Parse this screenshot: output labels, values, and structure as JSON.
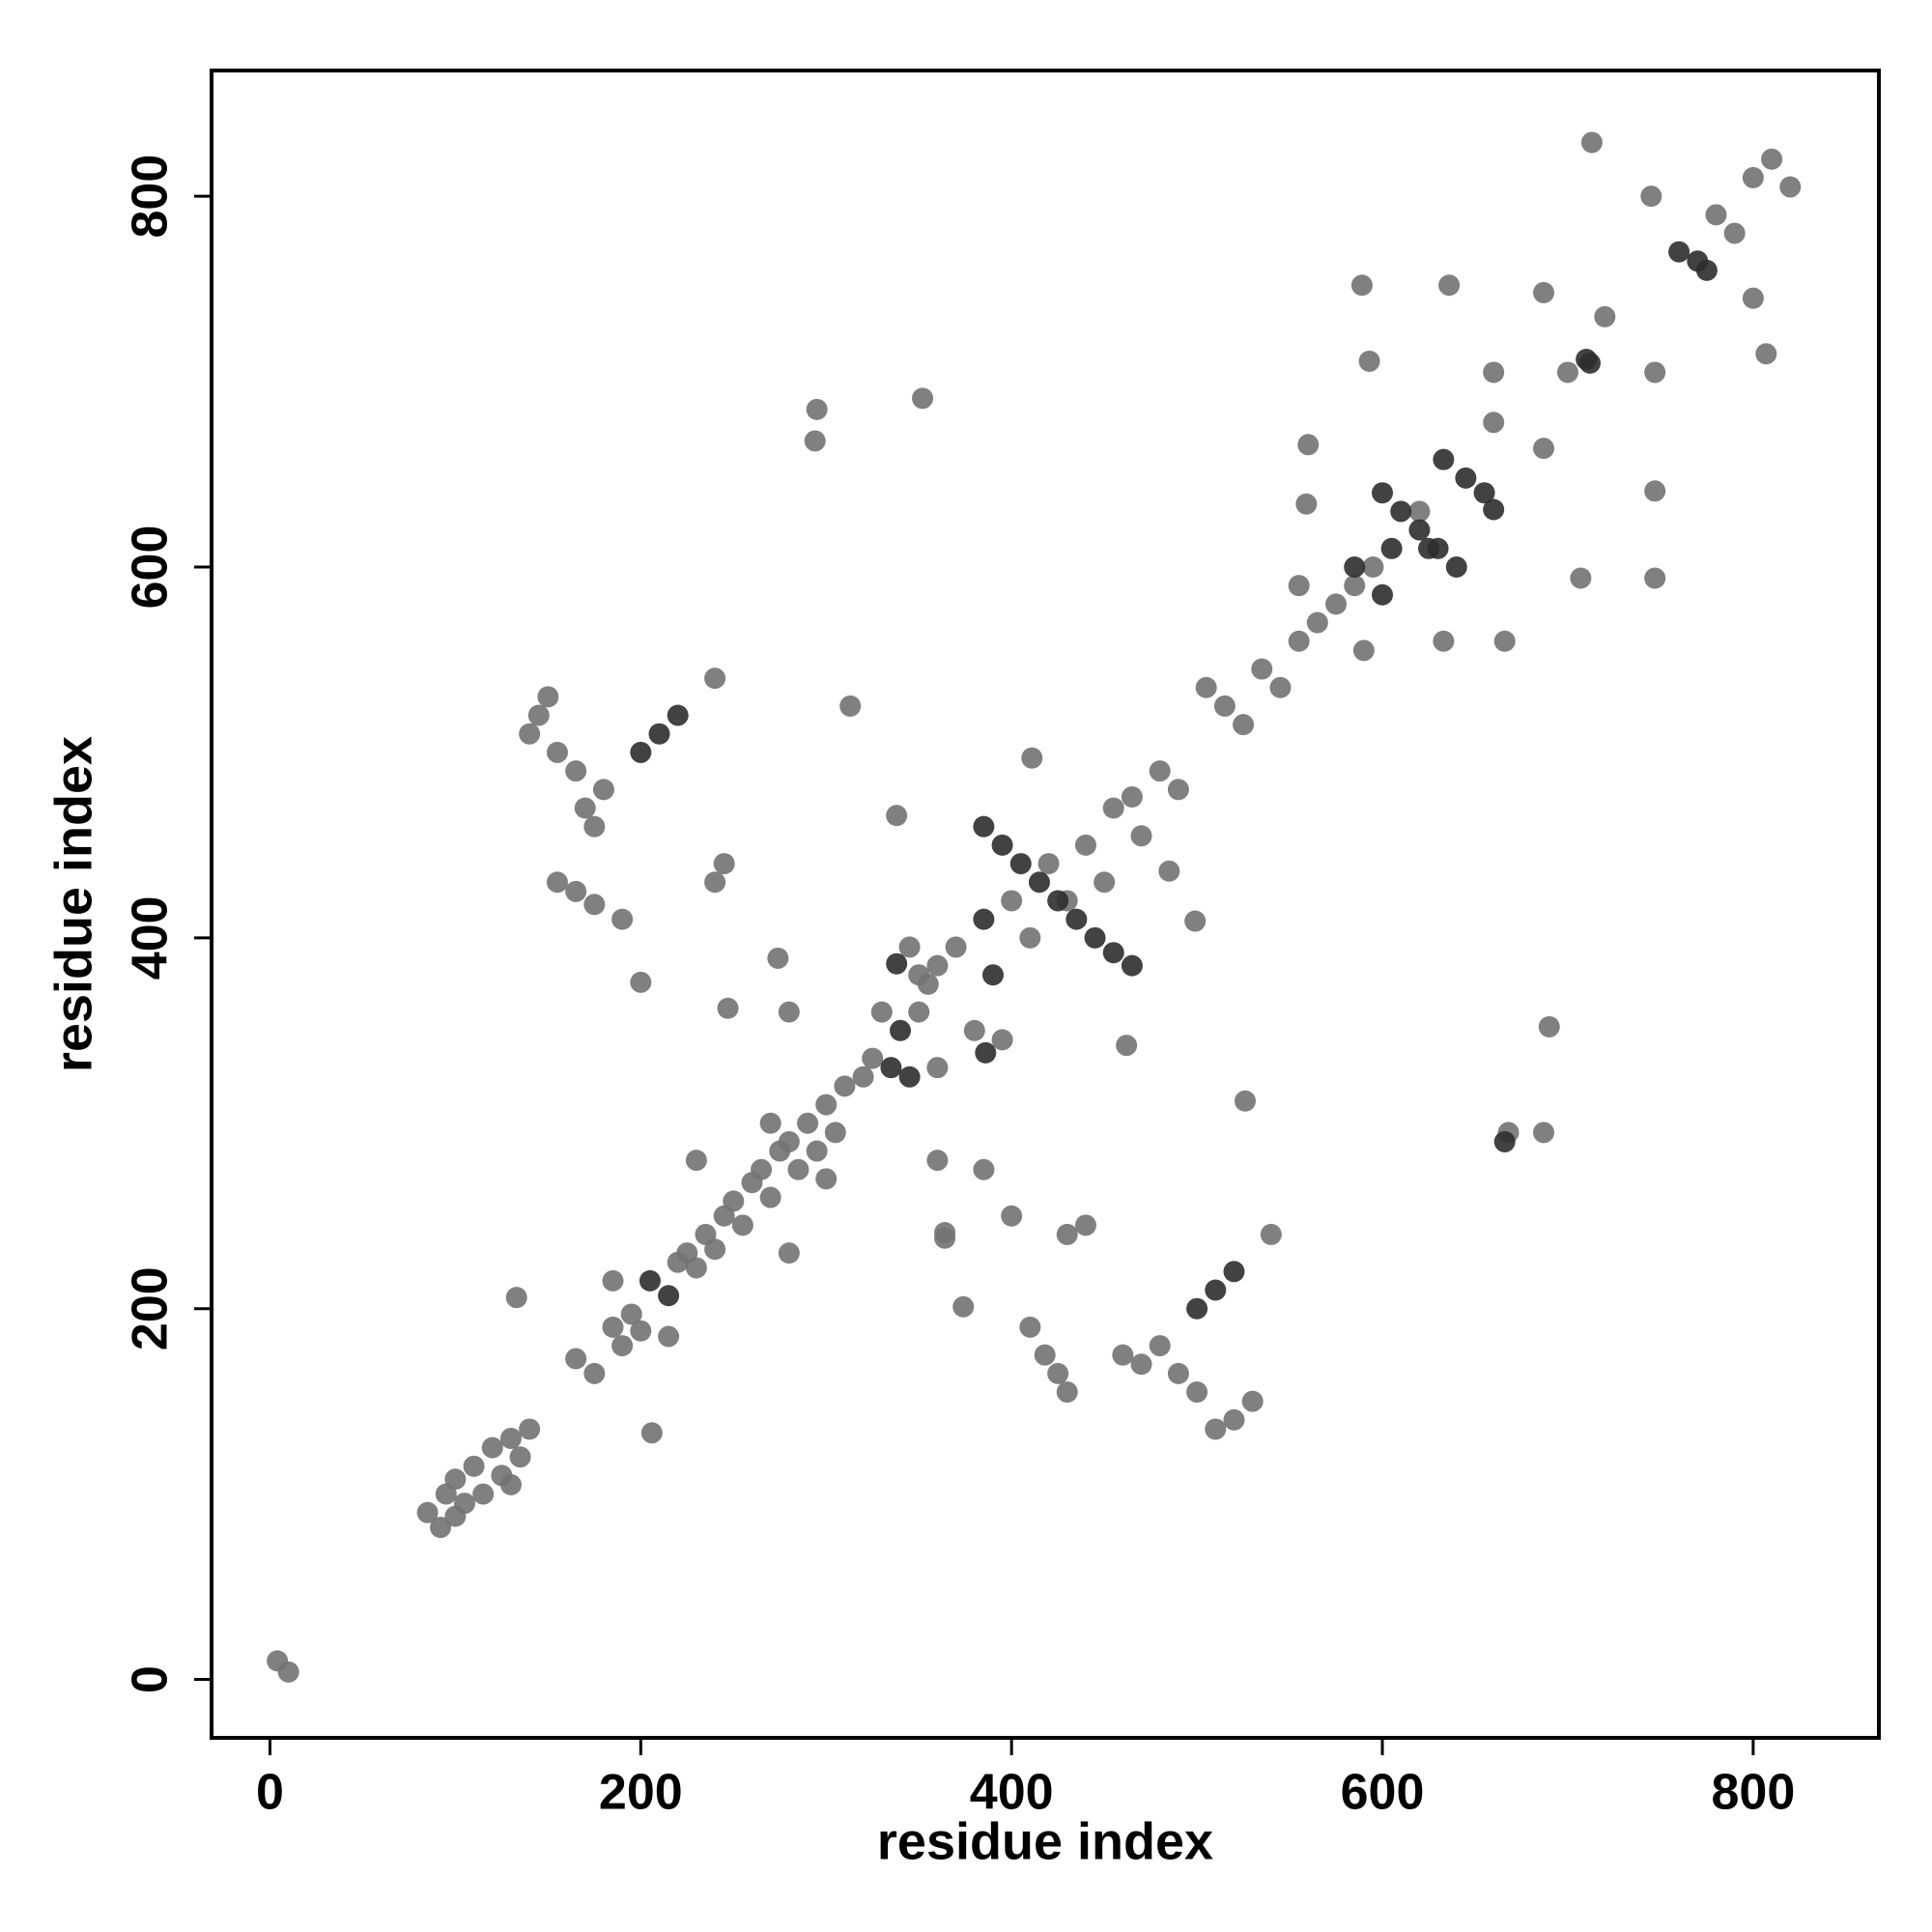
{
  "chart_data": {
    "type": "scatter",
    "x_label": "residue index",
    "y_label": "residue index",
    "xlim": [
      -31.5,
      867.8
    ],
    "ylim": [
      -31.5,
      867.8
    ],
    "xticks": [
      0,
      200,
      400,
      600,
      800
    ],
    "yticks": [
      0,
      200,
      400,
      600,
      800
    ],
    "grid": false,
    "series": [
      {
        "color": "#727272",
        "x": [
          4,
          10,
          85,
          92,
          95,
          100,
          105,
          110,
          115,
          120,
          125,
          130,
          135,
          140,
          100,
          130,
          133,
          206,
          165,
          175,
          185,
          190,
          195,
          200,
          220,
          225,
          230,
          235,
          240,
          245,
          250,
          255,
          260,
          265,
          270,
          275,
          280,
          285,
          290,
          295,
          300,
          305,
          310,
          320,
          325,
          350,
          355,
          360,
          370,
          400,
          410,
          420,
          430,
          440,
          450,
          455,
          470,
          480,
          490,
          150,
          145,
          140,
          155,
          165,
          170,
          175,
          180,
          530,
          520,
          510,
          500,
          490,
          470,
          460,
          480,
          155,
          165,
          175,
          190,
          430,
          425,
          418,
          410,
          240,
          540,
          245,
          240,
          440,
          430,
          294,
          295,
          668,
          687,
          352,
          690,
          313,
          526,
          200,
          374,
          247,
          364,
          274,
          385,
          505,
          515,
          525,
          535,
          545,
          555,
          565,
          575,
          585,
          595,
          620,
          589,
          747,
          636,
          747,
          660,
          700,
          687,
          660,
          687,
          720,
          747,
          713,
          807,
          560,
          666,
          559,
          633,
          590,
          555,
          707,
          593,
          462,
          338,
          465,
          485,
          499,
          411,
          364,
          400,
          780,
          800,
          810,
          820,
          790,
          745,
          800,
          360,
          330,
          380,
          350,
          395,
          345,
          280,
          360,
          300,
          270,
          230,
          280,
          215,
          185
        ],
        "y": [
          10,
          4,
          90,
          82,
          100,
          108,
          95,
          115,
          100,
          125,
          110,
          130,
          120,
          135,
          88,
          105,
          206,
          133,
          173,
          165,
          190,
          180,
          197,
          188,
          225,
          230,
          222,
          240,
          232,
          250,
          258,
          245,
          268,
          275,
          260,
          285,
          290,
          275,
          300,
          285,
          310,
          295,
          320,
          325,
          335,
          360,
          375,
          385,
          395,
          420,
          400,
          440,
          420,
          450,
          430,
          470,
          455,
          490,
          480,
          530,
          520,
          510,
          500,
          490,
          470,
          460,
          480,
          150,
          140,
          135,
          155,
          165,
          170,
          175,
          180,
          430,
          425,
          418,
          410,
          155,
          165,
          175,
          190,
          540,
          240,
          440,
          430,
          245,
          240,
          668,
          685,
          295,
          295,
          691,
          352,
          525,
          312,
          376,
          201,
          362,
          241,
          389,
          275,
          535,
          525,
          515,
          545,
          535,
          560,
          570,
          580,
          590,
          600,
          630,
          752,
          594,
          752,
          641,
          705,
          705,
          664,
          678,
          748,
          735,
          705,
          829,
          715,
          666,
          560,
          634,
          560,
          555,
          590,
          594,
          711,
          342,
          466,
          476,
          436,
          409,
          497,
          238,
          250,
          790,
          810,
          820,
          805,
          780,
          800,
          745,
          330,
          360,
          350,
          380,
          345,
          395,
          360,
          280,
          270,
          300,
          280,
          230,
          185,
          215
        ]
      },
      {
        "color": "#2e2e2e",
        "x": [
          205,
          215,
          335,
          340,
          345,
          385,
          390,
          200,
          210,
          220,
          500,
          510,
          520,
          385,
          395,
          405,
          415,
          425,
          435,
          445,
          455,
          465,
          338,
          386,
          600,
          610,
          620,
          630,
          640,
          633,
          645,
          655,
          660,
          760,
          770,
          775,
          605,
          625,
          666,
          600,
          585,
          712,
          710
        ],
        "y": [
          215,
          207,
          330,
          350,
          325,
          410,
          380,
          500,
          510,
          520,
          200,
          210,
          220,
          460,
          450,
          440,
          430,
          420,
          410,
          400,
          392,
          385,
          386,
          338,
          640,
          630,
          620,
          610,
          600,
          658,
          648,
          640,
          631,
          770,
          765,
          760,
          610,
          610,
          290,
          585,
          600,
          710,
          712
        ]
      }
    ]
  }
}
